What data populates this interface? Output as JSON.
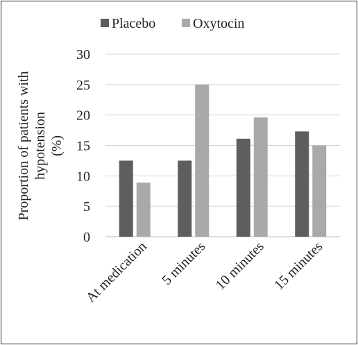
{
  "chart_data": {
    "type": "bar",
    "title": "",
    "xlabel": "",
    "ylabel_lines": [
      "Proportion of patients with",
      "hypotension",
      "(%)"
    ],
    "categories": [
      "At medication",
      "5 minutes",
      "10 minutes",
      "15 minutes"
    ],
    "series": [
      {
        "name": "Placebo",
        "values": [
          12.5,
          12.5,
          16.1,
          17.3
        ],
        "color": "#5e5e5e"
      },
      {
        "name": "Oxytocin",
        "values": [
          8.9,
          25.0,
          19.6,
          15.0
        ],
        "color": "#a9a9a9"
      }
    ],
    "ylim": [
      0,
      30
    ],
    "yticks": [
      0,
      5,
      10,
      15,
      20,
      25,
      30
    ],
    "grid": true,
    "legend_position": "top"
  }
}
